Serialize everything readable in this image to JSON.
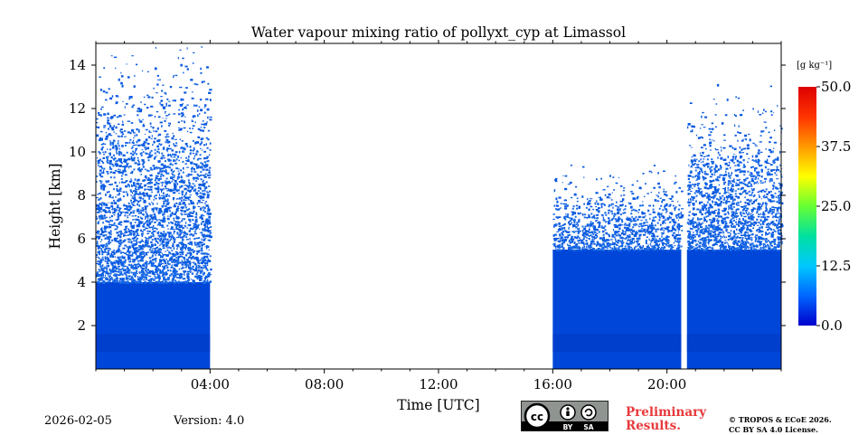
{
  "chart_data": {
    "type": "heatmap",
    "title": "Water vapour mixing ratio of pollyxt_cyp at Limassol",
    "xlabel": "Time [UTC]",
    "ylabel": "Height [km]",
    "xlim": [
      0,
      24
    ],
    "ylim": [
      0,
      15
    ],
    "x_ticks": [
      4,
      8,
      12,
      16,
      20
    ],
    "x_tick_labels": [
      "04:00",
      "08:00",
      "12:00",
      "16:00",
      "20:00"
    ],
    "y_ticks": [
      2,
      4,
      6,
      8,
      10,
      12,
      14
    ],
    "y_tick_labels": [
      "2",
      "4",
      "6",
      "8",
      "10",
      "12",
      "14"
    ],
    "colorbar": {
      "unit": "[g kg⁻¹]",
      "min": 0.0,
      "max": 50.0,
      "ticks": [
        0.0,
        12.5,
        25.0,
        37.5,
        50.0
      ],
      "tick_labels": [
        "0.0",
        "12.5",
        "25.0",
        "37.5",
        "50.0"
      ],
      "colormap": [
        "#0000cc",
        "#0066ff",
        "#00c8ff",
        "#00e0a0",
        "#66ff33",
        "#ffff00",
        "#ff9900",
        "#ff3300",
        "#dd0000"
      ]
    },
    "data_segments": [
      {
        "start_hour": 0.0,
        "end_hour": 4.0,
        "solid_top_km": 4.0,
        "signal_top_km": 15.0
      },
      {
        "start_hour": 16.0,
        "end_hour": 20.5,
        "solid_top_km": 5.5,
        "signal_top_km": 9.0
      },
      {
        "start_hour": 20.7,
        "end_hour": 24.0,
        "solid_top_km": 5.5,
        "signal_top_km": 12.5
      }
    ],
    "no_data": [
      {
        "start_hour": 4.0,
        "end_hour": 16.0
      },
      {
        "start_hour": 20.5,
        "end_hour": 20.7
      }
    ],
    "colors": {
      "low": "#0046d8",
      "mid": "#1a6ce8",
      "speckle": "#0a5ae0"
    }
  },
  "footer": {
    "date": "2026-02-05",
    "version": "Version: 4.0",
    "license_badge": {
      "icon": "cc-icon",
      "by": "BY",
      "sa": "SA"
    },
    "prelim_line1": "Preliminary",
    "prelim_line2": "Results.",
    "copyright_line1": "© TROPOS & ECoE 2026.",
    "copyright_line2": "CC BY SA 4.0 License."
  }
}
